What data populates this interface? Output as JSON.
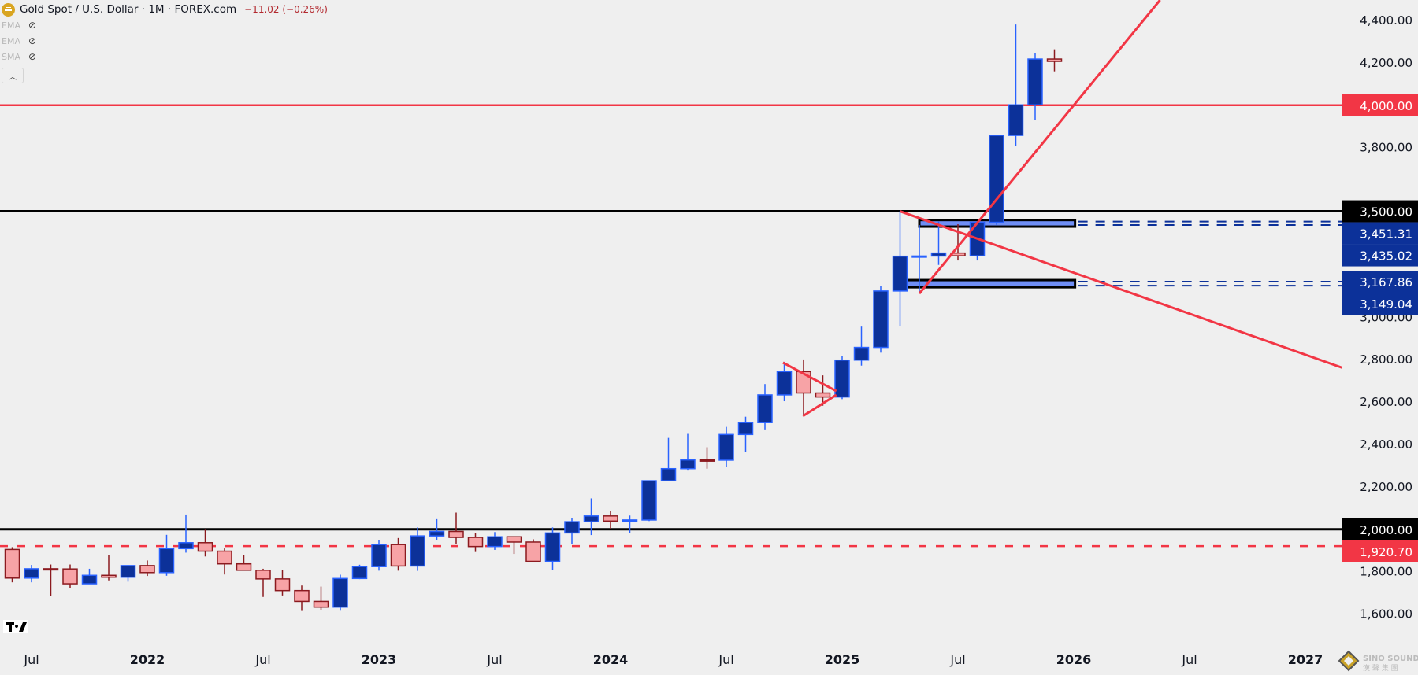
{
  "header": {
    "title": "Gold Spot / U.S. Dollar · 1M · FOREX.com",
    "change": "−11.02 (−0.26%)",
    "symbol_icon": "gold-bars-icon",
    "indicators": [
      {
        "label": "EMA",
        "icon": "eye-off-icon"
      },
      {
        "label": "EMA",
        "icon": "eye-off-icon"
      },
      {
        "label": "SMA",
        "icon": "eye-off-icon"
      }
    ],
    "collapse_icon": "chevron-up-icon"
  },
  "watermark": "SINO SOUND 漢聲集團",
  "colors": {
    "background": "#efefef",
    "bull_body": "#0c3199",
    "bull_border": "#2962ff",
    "bear_body": "#f7a3a6",
    "bear_border": "#8b1a1f",
    "red_line": "#f23645",
    "black_line": "#000000",
    "zone_blue": "#0c3199"
  },
  "chart_data": {
    "type": "candlestick",
    "timeframe": "1M",
    "ylim": [
      1450,
      4500
    ],
    "y_ticks": [
      "4,400.00",
      "4,200.00",
      "3,800.00",
      "3,000.00",
      "2,800.00",
      "2,600.00",
      "2,400.00",
      "2,200.00",
      "1,800.00",
      "1,600.00"
    ],
    "y_tick_values": [
      4400,
      4200,
      3800,
      3000,
      2800,
      2600,
      2400,
      2200,
      1800,
      1600
    ],
    "x_ticks": [
      {
        "label": "Jul",
        "date": "2021-07"
      },
      {
        "label": "2022",
        "date": "2022-01"
      },
      {
        "label": "Jul",
        "date": "2022-07"
      },
      {
        "label": "2023",
        "date": "2023-01"
      },
      {
        "label": "Jul",
        "date": "2023-07"
      },
      {
        "label": "2024",
        "date": "2024-01"
      },
      {
        "label": "Jul",
        "date": "2024-07"
      },
      {
        "label": "2025",
        "date": "2025-01"
      },
      {
        "label": "Jul",
        "date": "2025-07"
      },
      {
        "label": "2026",
        "date": "2026-01"
      },
      {
        "label": "Jul",
        "date": "2026-07"
      },
      {
        "label": "2027",
        "date": "2027-01"
      }
    ],
    "ohlc_columns": [
      "date",
      "open",
      "high",
      "low",
      "close"
    ],
    "ohlc": [
      [
        "2021-06",
        1905,
        1916,
        1750,
        1770
      ],
      [
        "2021-07",
        1770,
        1832,
        1750,
        1814
      ],
      [
        "2021-08",
        1814,
        1834,
        1687,
        1813
      ],
      [
        "2021-09",
        1813,
        1834,
        1721,
        1743
      ],
      [
        "2021-10",
        1743,
        1814,
        1746,
        1783
      ],
      [
        "2021-11",
        1783,
        1877,
        1759,
        1774
      ],
      [
        "2021-12",
        1774,
        1831,
        1753,
        1829
      ],
      [
        "2022-01",
        1829,
        1853,
        1780,
        1796
      ],
      [
        "2022-02",
        1796,
        1974,
        1781,
        1909
      ],
      [
        "2022-03",
        1909,
        2070,
        1890,
        1937
      ],
      [
        "2022-04",
        1937,
        1998,
        1872,
        1897
      ],
      [
        "2022-05",
        1897,
        1910,
        1787,
        1837
      ],
      [
        "2022-06",
        1837,
        1879,
        1805,
        1807
      ],
      [
        "2022-07",
        1807,
        1814,
        1681,
        1766
      ],
      [
        "2022-08",
        1766,
        1807,
        1688,
        1711
      ],
      [
        "2022-09",
        1711,
        1735,
        1615,
        1660
      ],
      [
        "2022-10",
        1660,
        1730,
        1617,
        1633
      ],
      [
        "2022-11",
        1633,
        1786,
        1616,
        1768
      ],
      [
        "2022-12",
        1768,
        1833,
        1765,
        1824
      ],
      [
        "2023-01",
        1824,
        1949,
        1805,
        1928
      ],
      [
        "2023-02",
        1928,
        1959,
        1805,
        1827
      ],
      [
        "2023-03",
        1827,
        2009,
        1804,
        1969
      ],
      [
        "2023-04",
        1969,
        2048,
        1950,
        1990
      ],
      [
        "2023-05",
        1990,
        2079,
        1932,
        1962
      ],
      [
        "2023-06",
        1962,
        1983,
        1893,
        1919
      ],
      [
        "2023-07",
        1919,
        1987,
        1903,
        1965
      ],
      [
        "2023-08",
        1965,
        1966,
        1884,
        1940
      ],
      [
        "2023-09",
        1940,
        1953,
        1846,
        1849
      ],
      [
        "2023-10",
        1849,
        2009,
        1810,
        1983
      ],
      [
        "2023-11",
        1983,
        2052,
        1931,
        2036
      ],
      [
        "2023-12",
        2036,
        2146,
        1973,
        2063
      ],
      [
        "2024-01",
        2063,
        2088,
        2002,
        2039
      ],
      [
        "2024-02",
        2039,
        2065,
        1984,
        2044
      ],
      [
        "2024-03",
        2044,
        2222,
        2039,
        2229
      ],
      [
        "2024-04",
        2229,
        2431,
        2228,
        2286
      ],
      [
        "2024-05",
        2286,
        2450,
        2277,
        2327
      ],
      [
        "2024-06",
        2327,
        2387,
        2286,
        2326
      ],
      [
        "2024-07",
        2326,
        2483,
        2293,
        2447
      ],
      [
        "2024-08",
        2447,
        2531,
        2364,
        2503
      ],
      [
        "2024-09",
        2503,
        2685,
        2471,
        2634
      ],
      [
        "2024-10",
        2634,
        2790,
        2604,
        2744
      ],
      [
        "2024-11",
        2744,
        2801,
        2536,
        2643
      ],
      [
        "2024-12",
        2643,
        2726,
        2583,
        2624
      ],
      [
        "2025-01",
        2624,
        2817,
        2614,
        2798
      ],
      [
        "2025-02",
        2798,
        2956,
        2772,
        2858
      ],
      [
        "2025-03",
        2858,
        3149,
        2833,
        3124
      ],
      [
        "2025-04",
        3124,
        3500,
        2957,
        3288
      ],
      [
        "2025-05",
        3288,
        3435,
        3120,
        3289
      ],
      [
        "2025-06",
        3289,
        3451,
        3247,
        3303
      ],
      [
        "2025-07",
        3303,
        3439,
        3268,
        3290
      ],
      [
        "2025-08",
        3290,
        3423,
        3268,
        3448
      ],
      [
        "2025-09",
        3448,
        3850,
        3436,
        3858
      ],
      [
        "2025-10",
        3858,
        4381,
        3810,
        4002
      ],
      [
        "2025-11",
        4002,
        4245,
        3930,
        4218
      ],
      [
        "2025-12",
        4218,
        4264,
        4160,
        4207
      ]
    ],
    "price_tags": [
      {
        "price": 4000.0,
        "label": "4,000.00",
        "style": "red"
      },
      {
        "price": 3500.0,
        "label": "3,500.00",
        "style": "black"
      },
      {
        "price": 3451.31,
        "label": "3,451.31",
        "style": "blue"
      },
      {
        "price": 3435.02,
        "label": "3,435.02",
        "style": "blue"
      },
      {
        "price": 3167.86,
        "label": "3,167.86",
        "style": "blue"
      },
      {
        "price": 3149.04,
        "label": "3,149.04",
        "style": "blue"
      },
      {
        "price": 2000.0,
        "label": "2,000.00",
        "style": "black"
      },
      {
        "price": 1920.7,
        "label": "1,920.70",
        "style": "red"
      }
    ],
    "horizontal_lines": [
      {
        "price": 4000,
        "style": "red-solid"
      },
      {
        "price": 3500,
        "style": "black-solid"
      },
      {
        "price": 2000,
        "style": "black-solid"
      },
      {
        "price": 1920.7,
        "style": "red-dashed"
      }
    ],
    "zones": [
      {
        "from": "2025-05-01",
        "to": "2026-01-03",
        "low": 3435.02,
        "high": 3451.31
      },
      {
        "from": "2025-04-10",
        "to": "2026-01-03",
        "low": 3149.04,
        "high": 3167.86
      }
    ],
    "trendlines": [
      {
        "p1": [
          "2025-05-01",
          3112
        ],
        "p2": [
          "2026-01-01",
          4000
        ],
        "extend": "right"
      },
      {
        "p1": [
          "2025-04-01",
          3500
        ],
        "p2": [
          "2026-01-30",
          3179
        ],
        "extend": "right"
      },
      {
        "p1": [
          "2024-09-29",
          2786
        ],
        "p2": [
          "2024-12-22",
          2652
        ],
        "extend": "none"
      },
      {
        "p1": [
          "2024-10-30",
          2534
        ],
        "p2": [
          "2024-12-22",
          2634
        ],
        "extend": "none"
      }
    ]
  }
}
